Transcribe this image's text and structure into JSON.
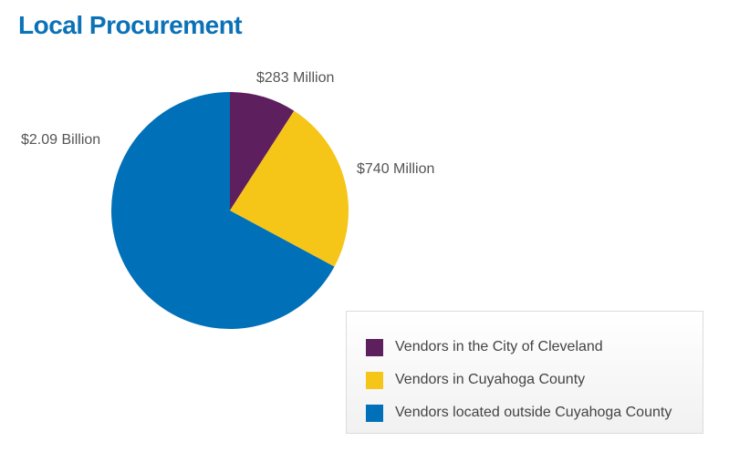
{
  "page": {
    "title": "Local Procurement"
  },
  "colors": {
    "title": "#0b72b8",
    "city": "#5e1f5f",
    "county": "#f5c518",
    "outside": "#0070b8"
  },
  "chart_data": {
    "type": "pie",
    "title": "Local Procurement",
    "units": "USD",
    "slices": [
      {
        "name": "Vendors in the City of Cleveland",
        "value": 283000000,
        "label": "$283 Million",
        "color": "#5e1f5f"
      },
      {
        "name": "Vendors in Cuyahoga County",
        "value": 740000000,
        "label": "$740 Million",
        "color": "#f5c518"
      },
      {
        "name": "Vendors located outside Cuyahoga County",
        "value": 2090000000,
        "label": "$2.09 Billion",
        "color": "#0070b8"
      }
    ],
    "legend_position": "bottom-right"
  }
}
